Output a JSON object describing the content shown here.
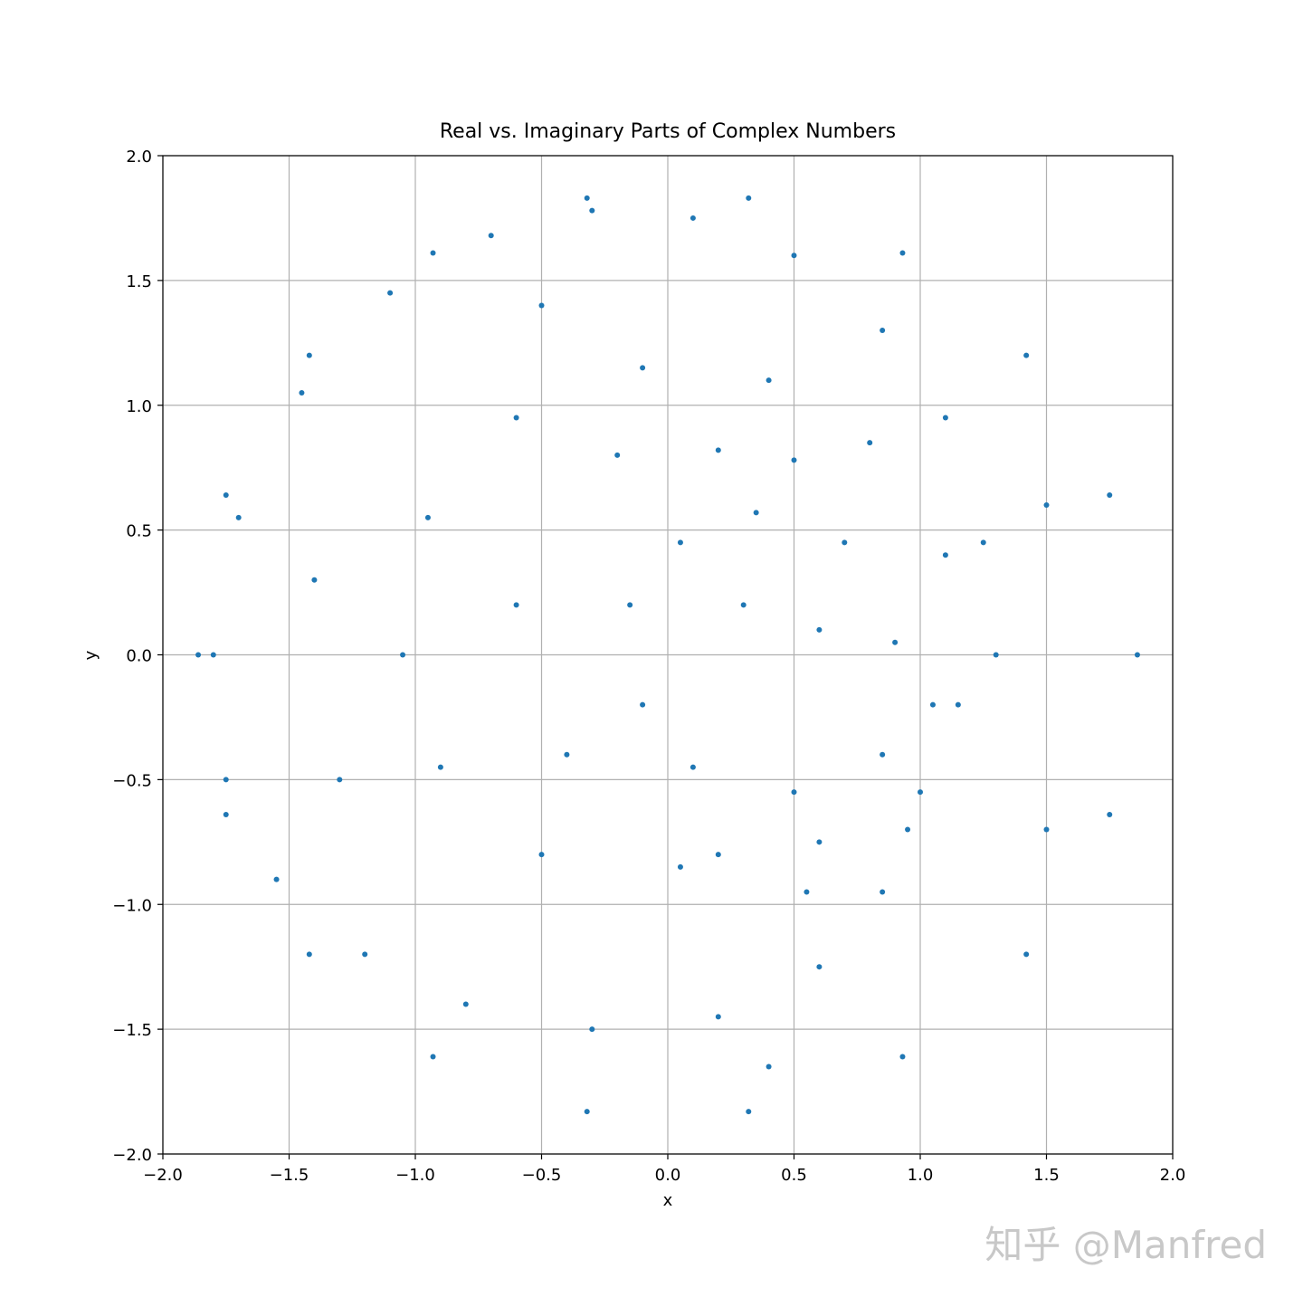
{
  "chart_data": {
    "type": "scatter",
    "title": "Real vs. Imaginary Parts of Complex Numbers",
    "x_label": "x",
    "y_label": "y",
    "watermark": "知乎 @Manfred",
    "color": "#1f77b4",
    "grid": true,
    "xlim": [
      -2,
      2
    ],
    "ylim": [
      -2,
      2
    ],
    "xticks": [
      {
        "value": -2,
        "label": "−2.0"
      },
      {
        "value": -1.5,
        "label": "−1.5"
      },
      {
        "value": -1,
        "label": "−1.0"
      },
      {
        "value": -0.5,
        "label": "−0.5"
      },
      {
        "value": 0,
        "label": "0.0"
      },
      0.5,
      {
        "value": 1,
        "label": "1.0"
      },
      1.5,
      {
        "value": 2,
        "label": "2.0"
      }
    ],
    "yticks": [
      {
        "value": -2,
        "label": "−2.0"
      },
      {
        "value": -1.5,
        "label": "−1.5"
      },
      {
        "value": -1,
        "label": "−1.0"
      },
      {
        "value": -0.5,
        "label": "−0.5"
      },
      {
        "value": 0,
        "label": "0.0"
      },
      0.5,
      {
        "value": 1,
        "label": "1.0"
      },
      1.5,
      {
        "value": 2,
        "label": "2.0"
      }
    ],
    "x": [
      1.86,
      1.75,
      1.42,
      0.93,
      0.32,
      -0.32,
      -0.93,
      -1.42,
      -1.75,
      -1.86,
      -1.75,
      -1.42,
      -0.93,
      -0.32,
      0.32,
      0.93,
      1.42,
      1.75,
      1.3,
      1.25,
      1.1,
      0.85,
      0.5,
      0.1,
      -0.3,
      -0.7,
      -1.1,
      -1.45,
      -1.7,
      -1.8,
      -1.75,
      -1.55,
      -1.2,
      -0.8,
      -0.3,
      0.2,
      0.6,
      0.85,
      1.0,
      1.05,
      -1.05,
      -0.95,
      -0.6,
      -0.1,
      0.4,
      0.8,
      1.1,
      1.15,
      0.95,
      0.55,
      0.05,
      -0.5,
      -0.9,
      -0.2,
      0.2,
      0.5,
      0.35,
      0.7,
      0.9,
      0.85,
      0.5,
      0.1,
      -0.1,
      -0.15,
      0.05,
      0.6,
      0.2,
      -0.6,
      -0.4,
      0.3,
      0.6,
      -1.4,
      -1.3,
      1.5,
      1.5,
      -0.5,
      0.4
    ],
    "y": [
      0.0,
      0.64,
      1.2,
      1.61,
      1.83,
      1.83,
      1.61,
      1.2,
      0.64,
      0.0,
      -0.64,
      -1.2,
      -1.61,
      -1.83,
      -1.83,
      -1.61,
      -1.2,
      -0.64,
      0.0,
      0.45,
      0.95,
      1.3,
      1.6,
      1.75,
      1.78,
      1.68,
      1.45,
      1.05,
      0.55,
      0.0,
      -0.5,
      -0.9,
      -1.2,
      -1.4,
      -1.5,
      -1.45,
      -1.25,
      -0.95,
      -0.55,
      -0.2,
      0.0,
      0.55,
      0.95,
      1.15,
      1.1,
      0.85,
      0.4,
      -0.2,
      -0.7,
      -0.95,
      -0.85,
      -0.8,
      -0.45,
      0.8,
      0.82,
      0.78,
      0.57,
      0.45,
      0.05,
      -0.4,
      -0.55,
      -0.45,
      -0.2,
      0.2,
      0.45,
      -0.75,
      -0.8,
      0.2,
      -0.4,
      0.2,
      0.1,
      0.3,
      -0.5,
      0.6,
      -0.7,
      1.4,
      -1.65
    ]
  }
}
